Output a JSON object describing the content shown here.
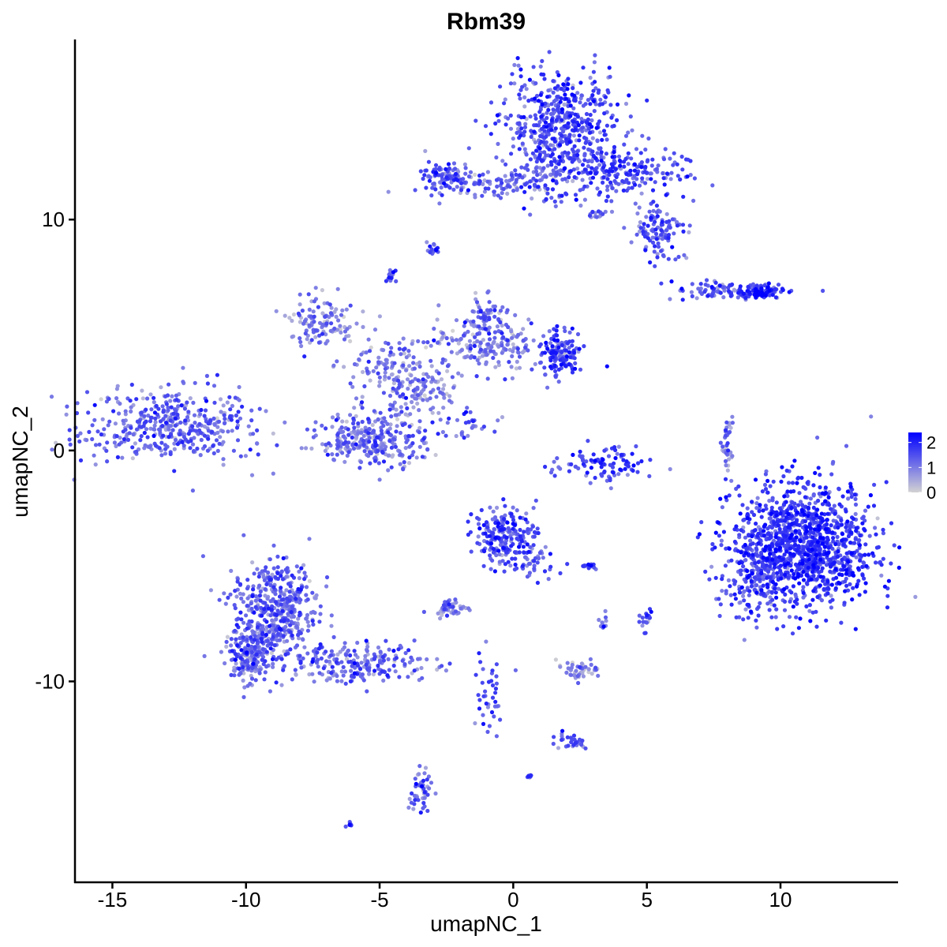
{
  "chart_data": {
    "type": "scatter",
    "title": "Rbm39",
    "xlabel": "umapNC_1",
    "ylabel": "umapNC_2",
    "xlim": [
      -16.4,
      14.4
    ],
    "ylim": [
      -18.7,
      17.8
    ],
    "xticks": [
      -15,
      -10,
      -5,
      0,
      5,
      10
    ],
    "yticks": [
      -10,
      0,
      10
    ],
    "xtick_labels": [
      "-15",
      "-10",
      "-5",
      "0",
      "5",
      "10"
    ],
    "ytick_labels": [
      "-10",
      "0",
      "10"
    ],
    "grid": false,
    "legend": {
      "placement": "right",
      "type": "colorbar",
      "min": 0,
      "max": 2.4,
      "ticks": [
        0,
        1,
        2
      ],
      "tick_labels": [
        "0",
        "1",
        "2"
      ],
      "low_color": "#D3D3D3",
      "high_color": "#0000FF"
    },
    "clusters": [
      {
        "x": -12.8,
        "y": 1.05,
        "sx": 1.7,
        "sy": 0.8,
        "n": 420,
        "expr": 1.2
      },
      {
        "x": 1.8,
        "y": 14.0,
        "sx": 1.1,
        "sy": 1.2,
        "n": 520,
        "expr": 1.5
      },
      {
        "x": 4.1,
        "y": 12.0,
        "sx": 1.2,
        "sy": 0.5,
        "n": 200,
        "expr": 1.5
      },
      {
        "x": 5.5,
        "y": 9.6,
        "sx": 0.5,
        "sy": 0.7,
        "n": 120,
        "expr": 1.4
      },
      {
        "x": -1.6,
        "y": 11.6,
        "sx": 1.1,
        "sy": 0.3,
        "n": 100,
        "expr": 1.1
      },
      {
        "x": -2.7,
        "y": 11.9,
        "sx": 0.3,
        "sy": 0.3,
        "n": 60,
        "expr": 1.5
      },
      {
        "x": 0.9,
        "y": 11.6,
        "sx": 0.8,
        "sy": 0.6,
        "n": 80,
        "expr": 1.3
      },
      {
        "x": 8.0,
        "y": 6.9,
        "sx": 1.0,
        "sy": 0.2,
        "n": 100,
        "expr": 1.3
      },
      {
        "x": 9.3,
        "y": 6.9,
        "sx": 0.4,
        "sy": 0.15,
        "n": 80,
        "expr": 2.0
      },
      {
        "x": -7.1,
        "y": 5.5,
        "sx": 0.6,
        "sy": 0.6,
        "n": 120,
        "expr": 0.9
      },
      {
        "x": -4.7,
        "y": 3.5,
        "sx": 0.7,
        "sy": 0.7,
        "n": 120,
        "expr": 1.0
      },
      {
        "x": -0.9,
        "y": 4.5,
        "sx": 1.2,
        "sy": 0.6,
        "n": 200,
        "expr": 1.0
      },
      {
        "x": 1.8,
        "y": 4.1,
        "sx": 0.4,
        "sy": 0.5,
        "n": 120,
        "expr": 1.6
      },
      {
        "x": -1.0,
        "y": 5.8,
        "sx": 0.4,
        "sy": 0.4,
        "n": 60,
        "expr": 1.1
      },
      {
        "x": -5.2,
        "y": 0.5,
        "sx": 1.0,
        "sy": 0.6,
        "n": 300,
        "expr": 1.1
      },
      {
        "x": -3.2,
        "y": 2.4,
        "sx": 0.6,
        "sy": 0.5,
        "n": 80,
        "expr": 0.9
      },
      {
        "x": 3.3,
        "y": -0.7,
        "sx": 0.9,
        "sy": 0.4,
        "n": 100,
        "expr": 1.5
      },
      {
        "x": 10.9,
        "y": -4.1,
        "sx": 1.3,
        "sy": 1.3,
        "n": 1200,
        "expr": 1.7
      },
      {
        "x": 8.9,
        "y": -5.4,
        "sx": 0.6,
        "sy": 1.0,
        "n": 150,
        "expr": 1.4
      },
      {
        "x": -0.3,
        "y": -3.6,
        "sx": 0.6,
        "sy": 0.6,
        "n": 200,
        "expr": 1.5
      },
      {
        "x": 0.6,
        "y": -4.8,
        "sx": 0.6,
        "sy": 0.4,
        "n": 50,
        "expr": 1.3
      },
      {
        "x": -8.9,
        "y": -7.1,
        "sx": 0.8,
        "sy": 1.2,
        "n": 500,
        "expr": 1.2
      },
      {
        "x": -10.0,
        "y": -8.9,
        "sx": 0.4,
        "sy": 0.6,
        "n": 150,
        "expr": 1.1
      },
      {
        "x": -5.6,
        "y": -9.2,
        "sx": 1.3,
        "sy": 0.4,
        "n": 200,
        "expr": 1.2
      },
      {
        "x": -2.4,
        "y": -6.8,
        "sx": 0.3,
        "sy": 0.2,
        "n": 50,
        "expr": 1.1
      },
      {
        "x": 2.4,
        "y": -9.5,
        "sx": 0.4,
        "sy": 0.2,
        "n": 50,
        "expr": 0.7
      },
      {
        "x": -3.4,
        "y": -14.7,
        "sx": 0.2,
        "sy": 0.6,
        "n": 50,
        "expr": 1.2
      },
      {
        "x": -0.9,
        "y": -10.6,
        "sx": 0.3,
        "sy": 0.9,
        "n": 40,
        "expr": 1.4
      },
      {
        "x": 2.1,
        "y": -12.6,
        "sx": 0.4,
        "sy": 0.2,
        "n": 30,
        "expr": 1.3
      },
      {
        "x": 8.0,
        "y": 0.4,
        "sx": 0.15,
        "sy": 0.6,
        "n": 40,
        "expr": 1.0
      },
      {
        "x": -1.6,
        "y": 1.2,
        "sx": 0.4,
        "sy": 0.4,
        "n": 30,
        "expr": 1.2
      },
      {
        "x": -3.0,
        "y": 8.7,
        "sx": 0.1,
        "sy": 0.1,
        "n": 15,
        "expr": 1.4
      },
      {
        "x": -4.6,
        "y": 7.5,
        "sx": 0.1,
        "sy": 0.15,
        "n": 15,
        "expr": 1.4
      },
      {
        "x": -6.1,
        "y": -16.2,
        "sx": 0.08,
        "sy": 0.05,
        "n": 8,
        "expr": 1.8
      },
      {
        "x": 2.8,
        "y": -5.0,
        "sx": 0.15,
        "sy": 0.08,
        "n": 12,
        "expr": 1.8
      },
      {
        "x": 5.0,
        "y": -7.3,
        "sx": 0.12,
        "sy": 0.25,
        "n": 20,
        "expr": 1.3
      },
      {
        "x": 3.3,
        "y": -7.5,
        "sx": 0.1,
        "sy": 0.2,
        "n": 10,
        "expr": 1.1
      },
      {
        "x": 0.6,
        "y": -14.1,
        "sx": 0.06,
        "sy": 0.06,
        "n": 8,
        "expr": 1.6
      },
      {
        "x": 3.1,
        "y": 10.2,
        "sx": 0.2,
        "sy": 0.1,
        "n": 15,
        "expr": 1.2
      }
    ]
  }
}
